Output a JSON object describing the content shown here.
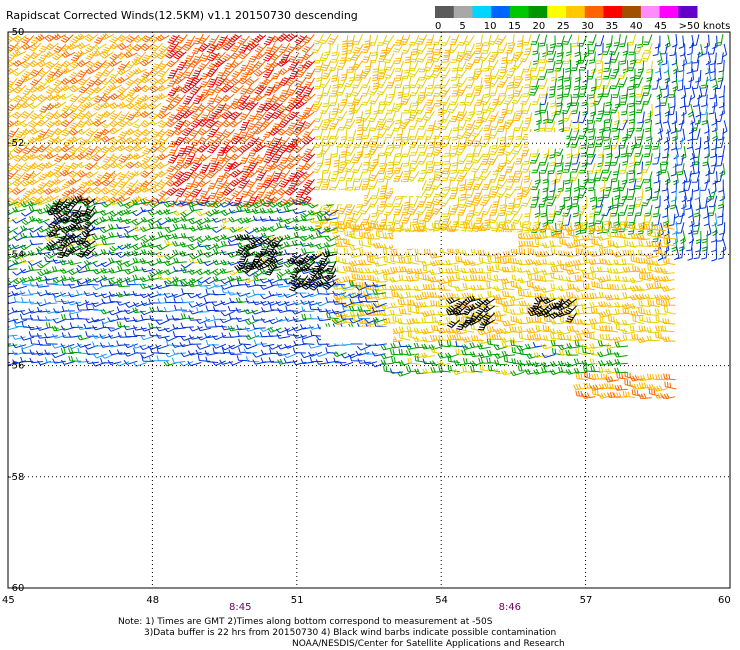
{
  "title": "Rapidscat Corrected Winds(12.5KM) v1.1 20150730 descending",
  "legend": {
    "colors": [
      "#5a5a5a",
      "#a8a8a8",
      "#00d4ff",
      "#0064ff",
      "#00c800",
      "#009600",
      "#ffff00",
      "#ffc800",
      "#ff6400",
      "#ff0000",
      "#a05000",
      "#ff8cff",
      "#ff00ff",
      "#6400c8"
    ],
    "labels": [
      "0",
      "5",
      "10",
      "15",
      "20",
      "25",
      "30",
      "35",
      "40",
      "45",
      ">50 knots"
    ],
    "bins": [
      {
        "max": 5,
        "color": "#888888"
      },
      {
        "max": 10,
        "color": "#1ea0ff"
      },
      {
        "max": 15,
        "color": "#0032dc"
      },
      {
        "max": 20,
        "color": "#00a000"
      },
      {
        "max": 25,
        "color": "#e6d200"
      },
      {
        "max": 30,
        "color": "#ffb400"
      },
      {
        "max": 35,
        "color": "#ff6400"
      },
      {
        "max": 40,
        "color": "#e60000"
      }
    ]
  },
  "axes": {
    "lon_min": 45,
    "lon_max": 60,
    "lat_min": -60,
    "lat_max": -50,
    "lon_ticks": [
      45,
      48,
      51,
      54,
      57,
      60
    ],
    "lat_ticks": [
      -50,
      -52,
      -54,
      -56,
      -58,
      -60
    ],
    "lon_labels": [
      "45",
      "48",
      "51",
      "54",
      "57",
      "60"
    ],
    "lat_labels": [
      "-50",
      "-52",
      "-54",
      "-56",
      "-58",
      "-60"
    ]
  },
  "time_labels": [
    {
      "text": "8:45",
      "lon": 49.8
    },
    {
      "text": "8:46",
      "lon": 55.4
    }
  ],
  "notes": [
    "Note: 1) Times are GMT 2)Times along bottom correspond to measurement at -50S",
    "3)Data buffer is 22 hrs from 20150730 4) Black wind barbs indicate possible contamination",
    "NOAA/NESDIS/Center for Satellite Applications and Research"
  ],
  "wind_regions": [
    {
      "name": "north-west",
      "lon": [
        45,
        48.5
      ],
      "lat": [
        -53,
        -50
      ],
      "speed": 28,
      "dir": 230
    },
    {
      "name": "north-central",
      "lon": [
        48.5,
        51.5
      ],
      "lat": [
        -53,
        -50
      ],
      "speed": 34,
      "dir": 220
    },
    {
      "name": "north-east-yellow",
      "lon": [
        51.5,
        56
      ],
      "lat": [
        -53.5,
        -50
      ],
      "speed": 24,
      "dir": 200
    },
    {
      "name": "north-east-green",
      "lon": [
        56,
        58.5
      ],
      "lat": [
        -53.5,
        -50
      ],
      "speed": 18,
      "dir": 190
    },
    {
      "name": "far-east-blue",
      "lon": [
        58.5,
        60
      ],
      "lat": [
        -54,
        -50
      ],
      "speed": 13,
      "dir": 180
    },
    {
      "name": "mid-band-green",
      "lon": [
        45,
        52
      ],
      "lat": [
        -54.5,
        -53
      ],
      "speed": 17,
      "dir": 250
    },
    {
      "name": "mid-east-yellow",
      "lon": [
        52,
        59
      ],
      "lat": [
        -55.6,
        -53.5
      ],
      "speed": 25,
      "dir": 270
    },
    {
      "name": "south-west-blue",
      "lon": [
        45,
        53
      ],
      "lat": [
        -56,
        -54.5
      ],
      "speed": 12,
      "dir": 260
    },
    {
      "name": "south-central-green",
      "lon": [
        53,
        58
      ],
      "lat": [
        -56.2,
        -55.6
      ],
      "speed": 18,
      "dir": 265
    },
    {
      "name": "south-east-orange",
      "lon": [
        57,
        59
      ],
      "lat": [
        -56.6,
        -56.2
      ],
      "speed": 30,
      "dir": 270
    }
  ]
}
